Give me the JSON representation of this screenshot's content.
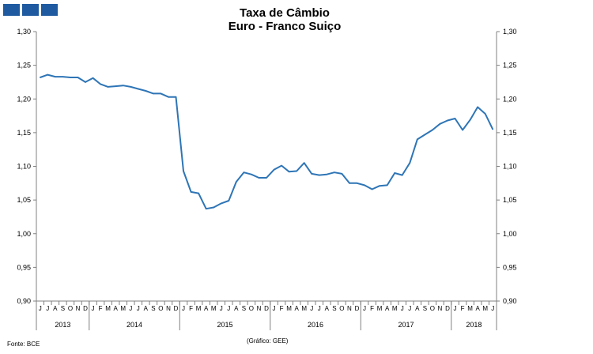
{
  "header": {
    "logo_name": "logo-squares",
    "logo_color": "#1f5aa0",
    "title_line1": "Taxa de Câmbio",
    "title_line2": "Euro - Franco Suiço"
  },
  "footer": {
    "source": "Fonte: BCE",
    "credit": "(Gráfico: GEE)"
  },
  "chart_data": {
    "type": "line",
    "title": "Taxa de Câmbio Euro - Franco Suiço",
    "ylim": [
      0.9,
      1.3
    ],
    "yticks": [
      "0,90",
      "0,95",
      "1,00",
      "1,05",
      "1,10",
      "1,15",
      "1,20",
      "1,25",
      "1,30"
    ],
    "grid": false,
    "line_color": "#2e75b6",
    "x_months": [
      "J",
      "J",
      "A",
      "S",
      "O",
      "N",
      "D",
      "J",
      "F",
      "M",
      "A",
      "M",
      "J",
      "J",
      "A",
      "S",
      "O",
      "N",
      "D",
      "J",
      "F",
      "M",
      "A",
      "M",
      "J",
      "J",
      "A",
      "S",
      "O",
      "N",
      "D",
      "J",
      "F",
      "M",
      "A",
      "M",
      "J",
      "J",
      "A",
      "S",
      "O",
      "N",
      "D",
      "J",
      "F",
      "M",
      "A",
      "M",
      "J",
      "J",
      "A",
      "S",
      "O",
      "N",
      "D",
      "J",
      "F",
      "M",
      "A",
      "M",
      "J"
    ],
    "years": [
      {
        "label": "2013",
        "start": 0,
        "count": 7
      },
      {
        "label": "2014",
        "start": 7,
        "count": 12
      },
      {
        "label": "2015",
        "start": 19,
        "count": 12
      },
      {
        "label": "2016",
        "start": 31,
        "count": 12
      },
      {
        "label": "2017",
        "start": 43,
        "count": 12
      },
      {
        "label": "2018",
        "start": 55,
        "count": 6
      }
    ],
    "series": [
      {
        "values": [
          1.232,
          1.236,
          1.233,
          1.233,
          1.232,
          1.232,
          1.225,
          1.231,
          1.222,
          1.218,
          1.219,
          1.22,
          1.218,
          1.215,
          1.212,
          1.208,
          1.208,
          1.203,
          1.203,
          1.093,
          1.062,
          1.06,
          1.037,
          1.039,
          1.045,
          1.049,
          1.077,
          1.091,
          1.088,
          1.083,
          1.083,
          1.095,
          1.101,
          1.092,
          1.093,
          1.105,
          1.089,
          1.087,
          1.088,
          1.091,
          1.089,
          1.075,
          1.075,
          1.072,
          1.066,
          1.071,
          1.072,
          1.09,
          1.087,
          1.105,
          1.14,
          1.147,
          1.154,
          1.163,
          1.168,
          1.171,
          1.154,
          1.169,
          1.188,
          1.178,
          1.155
        ]
      }
    ]
  }
}
